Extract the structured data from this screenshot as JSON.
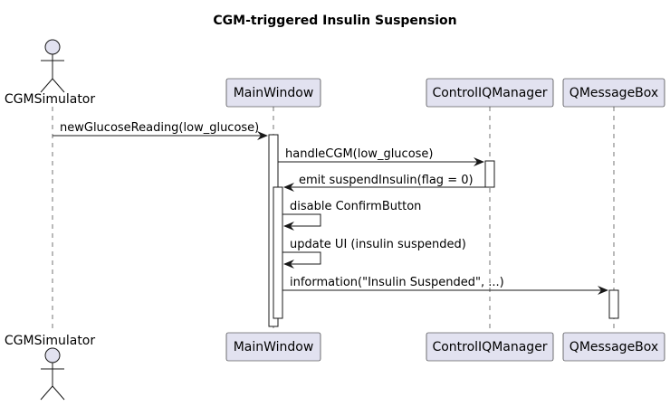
{
  "diagram": {
    "title": "CGM-triggered Insulin Suspension",
    "participants": [
      {
        "id": "cgm",
        "label": "CGMSimulator",
        "kind": "actor"
      },
      {
        "id": "mw",
        "label": "MainWindow",
        "kind": "participant"
      },
      {
        "id": "ciq",
        "label": "ControlIQManager",
        "kind": "participant"
      },
      {
        "id": "qmb",
        "label": "QMessageBox",
        "kind": "participant"
      }
    ],
    "messages": [
      {
        "from": "cgm",
        "to": "mw",
        "label": "newGlucoseReading(low_glucose)"
      },
      {
        "from": "mw",
        "to": "ciq",
        "label": "handleCGM(low_glucose)"
      },
      {
        "from": "ciq",
        "to": "mw",
        "label": "emit suspendInsulin(flag = 0)"
      },
      {
        "from": "mw",
        "to": "mw",
        "label": "disable ConfirmButton"
      },
      {
        "from": "mw",
        "to": "mw",
        "label": "update UI (insulin suspended)"
      },
      {
        "from": "mw",
        "to": "qmb",
        "label": "information(\"Insulin Suspended\", ...)"
      }
    ]
  }
}
